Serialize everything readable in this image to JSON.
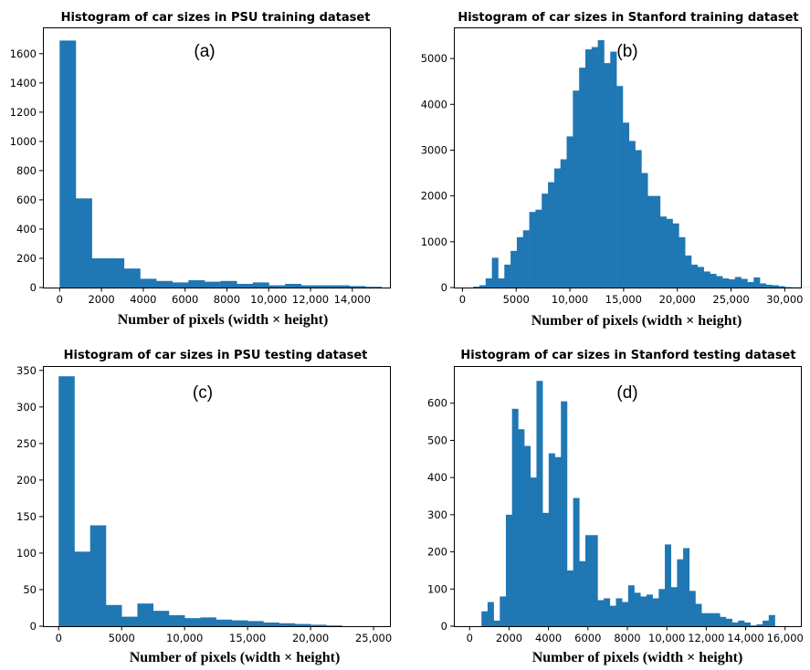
{
  "chart_data": [
    {
      "type": "bar",
      "panel_label": "(a)",
      "title": "Histogram of car sizes in PSU training dataset",
      "xlabel": "Number of pixels (width × height)",
      "ylabel": "",
      "xlim": [
        -800,
        15800
      ],
      "ylim": [
        0,
        1780
      ],
      "xticks": [
        0,
        2000,
        4000,
        6000,
        8000,
        10000,
        12000,
        14000
      ],
      "xtick_labels": [
        "0",
        "2000",
        "4000",
        "6000",
        "8000",
        "10,000",
        "12,000",
        "14,000"
      ],
      "yticks": [
        0,
        200,
        400,
        600,
        800,
        1000,
        1200,
        1400,
        1600
      ],
      "ytick_labels": [
        "0",
        "200",
        "400",
        "600",
        "800",
        "1000",
        "1200",
        "1400",
        "1600"
      ],
      "bin_start": 0,
      "bin_width": 770,
      "values": [
        1690,
        610,
        200,
        200,
        130,
        60,
        45,
        35,
        50,
        40,
        45,
        25,
        35,
        15,
        25,
        15,
        15,
        15,
        10,
        5
      ]
    },
    {
      "type": "bar",
      "panel_label": "(b)",
      "title": "Histogram of car sizes in Stanford training dataset",
      "xlabel": "Number of pixels (width × height)",
      "ylabel": "",
      "xlim": [
        -800,
        31500
      ],
      "ylim": [
        0,
        5680
      ],
      "xticks": [
        0,
        5000,
        10000,
        15000,
        20000,
        25000,
        30000
      ],
      "xtick_labels": [
        "0",
        "5000",
        "10,000",
        "15,000",
        "20,000",
        "25,000",
        "30,000"
      ],
      "yticks": [
        0,
        1000,
        2000,
        3000,
        4000,
        5000
      ],
      "ytick_labels": [
        "0",
        "1000",
        "2000",
        "3000",
        "4000",
        "5000"
      ],
      "bin_start": 1000,
      "bin_width": 580,
      "values": [
        20,
        50,
        200,
        650,
        200,
        500,
        800,
        1100,
        1250,
        1650,
        1700,
        2050,
        2300,
        2600,
        2800,
        3300,
        4300,
        4800,
        5200,
        5250,
        5400,
        4900,
        5150,
        4400,
        3600,
        3200,
        3000,
        2500,
        2000,
        2000,
        1550,
        1500,
        1400,
        1100,
        700,
        500,
        450,
        350,
        300,
        250,
        200,
        180,
        230,
        190,
        120,
        220,
        90,
        60,
        50,
        30,
        10,
        5,
        5,
        3
      ]
    },
    {
      "type": "bar",
      "panel_label": "(c)",
      "title": "Histogram of car sizes in PSU testing dataset",
      "xlabel": "Number of pixels (width × height)",
      "ylabel": "",
      "xlim": [
        -1250,
        26300
      ],
      "ylim": [
        0,
        356
      ],
      "xticks": [
        0,
        5000,
        10000,
        15000,
        20000,
        25000
      ],
      "xtick_labels": [
        "0",
        "5000",
        "10,000",
        "15,000",
        "20,000",
        "25,000"
      ],
      "yticks": [
        0,
        50,
        100,
        150,
        200,
        250,
        300,
        350
      ],
      "ytick_labels": [
        "0",
        "50",
        "100",
        "150",
        "200",
        "250",
        "300",
        "350"
      ],
      "bin_start": 0,
      "bin_width": 1250,
      "values": [
        342,
        102,
        138,
        29,
        13,
        31,
        21,
        15,
        11,
        12,
        9,
        8,
        7,
        5,
        4,
        3,
        2,
        1
      ]
    },
    {
      "type": "bar",
      "panel_label": "(d)",
      "title": "Histogram of car sizes in Stanford testing dataset",
      "xlabel": "Number of pixels (width × height)",
      "ylabel": "",
      "xlim": [
        -800,
        16800
      ],
      "ylim": [
        0,
        700
      ],
      "xticks": [
        0,
        2000,
        4000,
        6000,
        8000,
        10000,
        12000,
        14000,
        16000
      ],
      "xtick_labels": [
        "0",
        "2000",
        "4000",
        "6000",
        "8000",
        "10,000",
        "12,000",
        "14,000",
        "16,000"
      ],
      "yticks": [
        0,
        100,
        200,
        300,
        400,
        500,
        600
      ],
      "ytick_labels": [
        "0",
        "100",
        "200",
        "300",
        "400",
        "500",
        "600"
      ],
      "bin_start": 600,
      "bin_width": 310,
      "values": [
        40,
        65,
        15,
        80,
        300,
        585,
        530,
        485,
        400,
        660,
        305,
        465,
        455,
        605,
        150,
        345,
        175,
        245,
        245,
        70,
        75,
        55,
        75,
        65,
        110,
        90,
        80,
        85,
        75,
        100,
        220,
        105,
        180,
        210,
        95,
        60,
        35,
        35,
        35,
        25,
        20,
        10,
        15,
        10,
        2,
        5,
        15,
        30
      ]
    }
  ]
}
